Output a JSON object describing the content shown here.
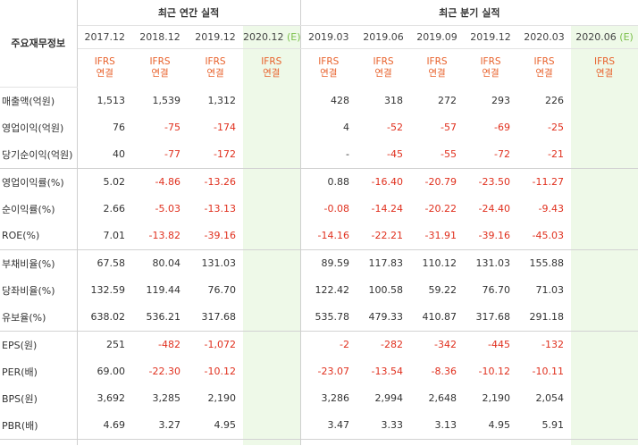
{
  "header": {
    "label": "주요재무정보",
    "annual_group": "최근 연간 실적",
    "quarter_group": "최근 분기 실적",
    "periods": [
      {
        "label": "2017.12",
        "est": false
      },
      {
        "label": "2018.12",
        "est": false
      },
      {
        "label": "2019.12",
        "est": false
      },
      {
        "label": "2020.12",
        "est": true
      },
      {
        "label": "2019.03",
        "est": false
      },
      {
        "label": "2019.06",
        "est": false
      },
      {
        "label": "2019.09",
        "est": false
      },
      {
        "label": "2019.12",
        "est": false
      },
      {
        "label": "2020.03",
        "est": false
      },
      {
        "label": "2020.06",
        "est": true
      }
    ],
    "est_suffix": "(E)",
    "ifrs_top": "IFRS",
    "ifrs_bottom": "연결"
  },
  "rows": [
    {
      "label": "매출액(억원)",
      "values": [
        "1,513",
        "1,539",
        "1,312",
        "",
        "428",
        "318",
        "272",
        "293",
        "226",
        ""
      ]
    },
    {
      "label": "영업이익(억원)",
      "values": [
        "76",
        "-75",
        "-174",
        "",
        "4",
        "-52",
        "-57",
        "-69",
        "-25",
        ""
      ]
    },
    {
      "label": "당기순이익(억원)",
      "values": [
        "40",
        "-77",
        "-172",
        "",
        "-",
        "-45",
        "-55",
        "-72",
        "-21",
        ""
      ]
    },
    {
      "label": "영업이익률(%)",
      "values": [
        "5.02",
        "-4.86",
        "-13.26",
        "",
        "0.88",
        "-16.40",
        "-20.79",
        "-23.50",
        "-11.27",
        ""
      ]
    },
    {
      "label": "순이익률(%)",
      "values": [
        "2.66",
        "-5.03",
        "-13.13",
        "",
        "-0.08",
        "-14.24",
        "-20.22",
        "-24.40",
        "-9.43",
        ""
      ]
    },
    {
      "label": "ROE(%)",
      "values": [
        "7.01",
        "-13.82",
        "-39.16",
        "",
        "-14.16",
        "-22.21",
        "-31.91",
        "-39.16",
        "-45.03",
        ""
      ]
    },
    {
      "label": "부채비율(%)",
      "values": [
        "67.58",
        "80.04",
        "131.03",
        "",
        "89.59",
        "117.83",
        "110.12",
        "131.03",
        "155.88",
        ""
      ]
    },
    {
      "label": "당좌비율(%)",
      "values": [
        "132.59",
        "119.44",
        "76.70",
        "",
        "122.42",
        "100.58",
        "59.22",
        "76.70",
        "71.03",
        ""
      ]
    },
    {
      "label": "유보율(%)",
      "values": [
        "638.02",
        "536.21",
        "317.68",
        "",
        "535.78",
        "479.33",
        "410.87",
        "317.68",
        "291.18",
        ""
      ]
    },
    {
      "label": "EPS(원)",
      "values": [
        "251",
        "-482",
        "-1,072",
        "",
        "-2",
        "-282",
        "-342",
        "-445",
        "-132",
        ""
      ]
    },
    {
      "label": "PER(배)",
      "values": [
        "69.00",
        "-22.30",
        "-10.12",
        "",
        "-23.07",
        "-13.54",
        "-8.36",
        "-10.12",
        "-10.11",
        ""
      ]
    },
    {
      "label": "BPS(원)",
      "values": [
        "3,692",
        "3,285",
        "2,190",
        "",
        "3,286",
        "2,994",
        "2,648",
        "2,190",
        "2,054",
        ""
      ]
    },
    {
      "label": "PBR(배)",
      "values": [
        "4.69",
        "3.27",
        "4.95",
        "",
        "3.47",
        "3.33",
        "3.13",
        "4.95",
        "5.91",
        ""
      ]
    }
  ],
  "colors": {
    "negative": "#e0301e",
    "ifrs": "#e8612b",
    "estimate_bg": "#eef9e8",
    "estimate_text": "#7bbf4a"
  }
}
